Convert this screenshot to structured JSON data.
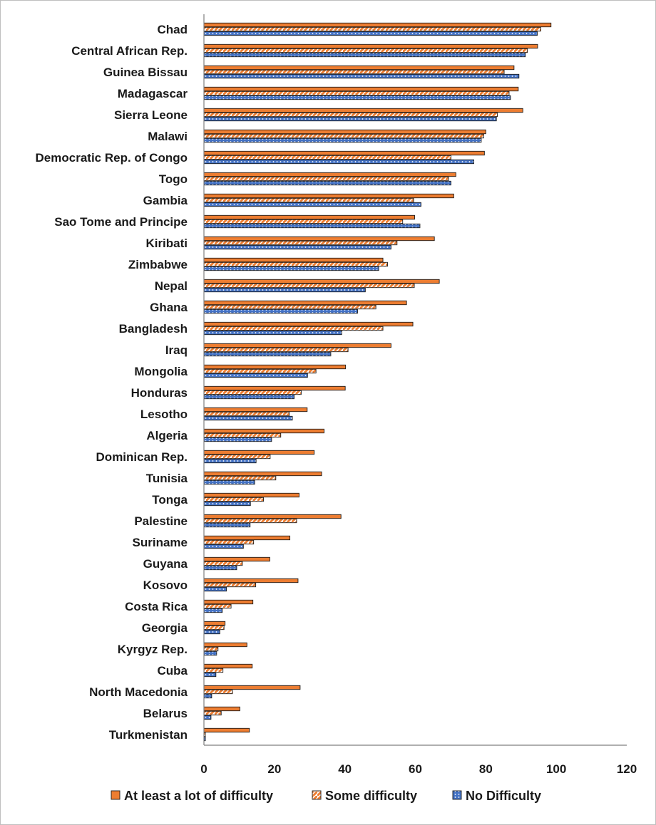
{
  "chart_data": {
    "type": "bar",
    "orientation": "horizontal",
    "categories": [
      "Chad",
      "Central African Rep.",
      "Guinea Bissau",
      "Madagascar",
      "Sierra Leone",
      "Malawi",
      "Democratic Rep. of Congo",
      "Togo",
      "Gambia",
      "Sao Tome and Principe",
      "Kiribati",
      "Zimbabwe",
      "Nepal",
      "Ghana",
      "Bangladesh",
      "Iraq",
      "Mongolia",
      "Honduras",
      "Lesotho",
      "Algeria",
      "Dominican Rep.",
      "Tunisia",
      "Tonga",
      "Palestine",
      "Suriname",
      "Guyana",
      "Kosovo",
      "Costa Rica",
      "Georgia",
      "Kyrgyz Rep.",
      "Cuba",
      "North Macedonia",
      "Belarus",
      "Turkmenistan"
    ],
    "series": [
      {
        "name": "At least a lot of difficulty",
        "color": "#ED7D31",
        "pattern": "solid",
        "values": [
          98.5,
          94.7,
          88,
          89.2,
          90.5,
          80,
          79.6,
          71.5,
          70.9,
          59.8,
          65.4,
          50.8,
          66.8,
          57.5,
          59.3,
          53.1,
          40.2,
          40.1,
          29.3,
          34.1,
          31.3,
          33.4,
          27,
          38.9,
          24.4,
          18.7,
          26.7,
          13.9,
          6,
          12.2,
          13.7,
          27.3,
          10.2,
          12.9
        ]
      },
      {
        "name": "Some difficulty",
        "color": "#ED7D31",
        "pattern": "diagonal-stripes",
        "values": [
          95.6,
          91.8,
          85.2,
          86.6,
          83.3,
          79.4,
          70.1,
          69.4,
          59.5,
          56.4,
          54.8,
          52.1,
          59.7,
          48.8,
          50.8,
          40.9,
          31.8,
          27.6,
          24.2,
          21.8,
          18.8,
          20.4,
          16.9,
          26.3,
          14.1,
          10.9,
          14.7,
          7.7,
          5.7,
          4,
          5.4,
          8.1,
          4.9,
          0.4
        ]
      },
      {
        "name": "No Difficulty",
        "color": "#4472C4",
        "pattern": "dots",
        "values": [
          94.6,
          91.2,
          89.4,
          87,
          83,
          78.7,
          76.6,
          70.1,
          61.6,
          61.3,
          53.1,
          49.6,
          45.8,
          43.6,
          39.1,
          36,
          29.4,
          25.6,
          25.1,
          19.2,
          14.8,
          14.4,
          13.2,
          13.1,
          11.2,
          9.3,
          6.4,
          5.2,
          4.5,
          3.6,
          3.4,
          2.2,
          2,
          0.4
        ]
      }
    ],
    "xlim": [
      0,
      120
    ],
    "xticks": [
      0,
      20,
      40,
      60,
      80,
      100,
      120
    ],
    "legend_position": "bottom",
    "grid": false
  }
}
